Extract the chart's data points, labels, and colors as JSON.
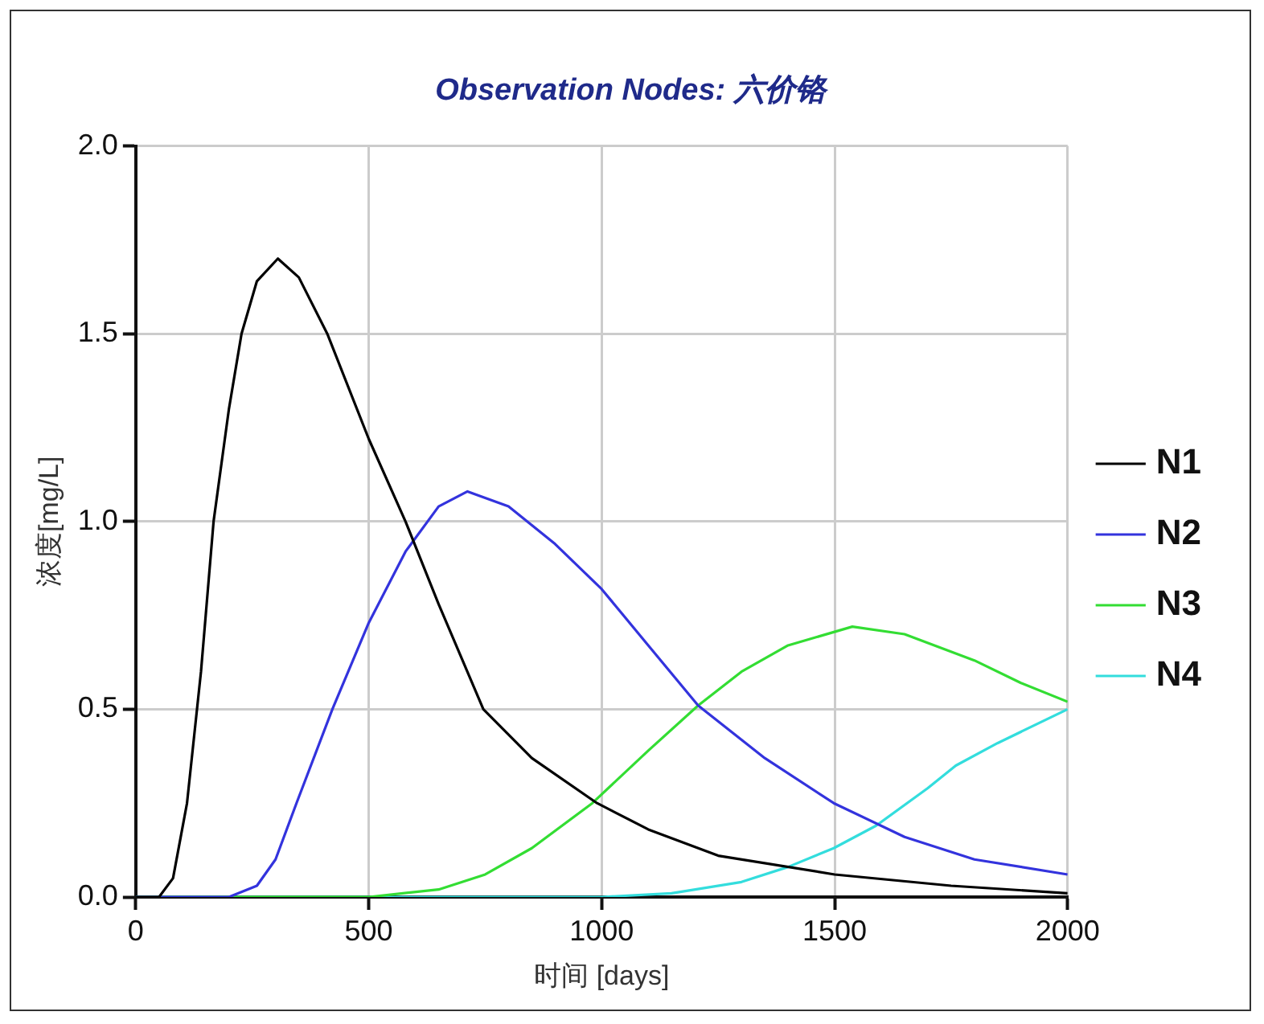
{
  "chart_data": {
    "type": "line",
    "title": "Observation Nodes: 六价铬",
    "xlabel": "时间 [days]",
    "ylabel": "浓度[mg/L]",
    "xlim": [
      0,
      2000
    ],
    "xticks": [
      0,
      500,
      1000,
      1500,
      2000
    ],
    "ylim": [
      0,
      2
    ],
    "yticks": [
      {
        "value": 0,
        "label": "0.0"
      },
      {
        "value": 0.5,
        "label": "0.5"
      },
      {
        "value": 1,
        "label": "1.0"
      },
      {
        "value": 1.5,
        "label": "1.5"
      },
      {
        "value": 2,
        "label": "2.0"
      }
    ],
    "grid": true,
    "legend": "right",
    "line_style": "solid",
    "series": [
      {
        "name": "N1",
        "color": "#000000",
        "x": [
          0,
          50,
          80,
          110,
          140,
          167,
          200,
          227,
          260,
          305,
          350,
          411,
          500,
          579,
          650,
          746,
          850,
          990,
          1100,
          1250,
          1500,
          1750,
          2000
        ],
        "values": [
          0,
          0,
          0.05,
          0.25,
          0.6,
          1.0,
          1.3,
          1.5,
          1.64,
          1.7,
          1.65,
          1.5,
          1.22,
          1.0,
          0.78,
          0.5,
          0.37,
          0.25,
          0.18,
          0.11,
          0.06,
          0.03,
          0.01
        ]
      },
      {
        "name": "N2",
        "color": "#3333dd",
        "x": [
          0,
          200,
          260,
          300,
          345,
          422,
          500,
          579,
          650,
          712,
          800,
          900,
          1000,
          1100,
          1207,
          1350,
          1498,
          1650,
          1800,
          2000
        ],
        "values": [
          0,
          0,
          0.03,
          0.1,
          0.25,
          0.5,
          0.73,
          0.92,
          1.04,
          1.08,
          1.04,
          0.94,
          0.82,
          0.67,
          0.51,
          0.37,
          0.25,
          0.16,
          0.1,
          0.06
        ]
      },
      {
        "name": "N3",
        "color": "#33dd33",
        "x": [
          0,
          500,
          650,
          750,
          850,
          980,
          1100,
          1207,
          1300,
          1400,
          1538,
          1650,
          1800,
          1900,
          2000
        ],
        "values": [
          0,
          0,
          0.02,
          0.06,
          0.13,
          0.25,
          0.39,
          0.51,
          0.6,
          0.67,
          0.72,
          0.7,
          0.63,
          0.57,
          0.52
        ]
      },
      {
        "name": "N4",
        "color": "#33dddd",
        "x": [
          0,
          1000,
          1150,
          1300,
          1400,
          1498,
          1589,
          1700,
          1760,
          1850,
          2000
        ],
        "values": [
          0,
          0,
          0.01,
          0.04,
          0.08,
          0.13,
          0.19,
          0.29,
          0.35,
          0.41,
          0.5
        ]
      }
    ]
  }
}
